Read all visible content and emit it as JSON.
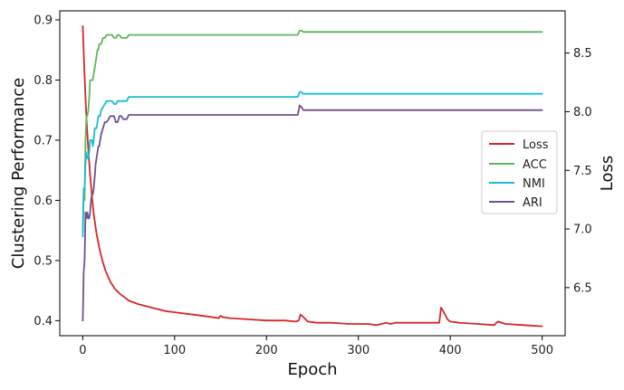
{
  "chart_data": {
    "type": "line",
    "xlabel": "Epoch",
    "ylabel_left": "Clustering Performance",
    "ylabel_right": "Loss",
    "x_ticks": [
      0,
      100,
      200,
      300,
      400,
      500
    ],
    "x_tick_labels": [
      "0",
      "100",
      "200",
      "300",
      "400",
      "500"
    ],
    "y_left_ticks": [
      0.4,
      0.5,
      0.6,
      0.7,
      0.8,
      0.9
    ],
    "y_left_tick_labels": [
      "0.4",
      "0.5",
      "0.6",
      "0.7",
      "0.8",
      "0.9"
    ],
    "y_right_ticks": [
      6.5,
      7.0,
      7.5,
      8.0,
      8.5
    ],
    "y_right_tick_labels": [
      "6.5",
      "7.0",
      "7.5",
      "8.0",
      "8.5"
    ],
    "xlim": [
      -25,
      525
    ],
    "ylim_left": [
      0.375,
      0.915
    ],
    "ylim_right": [
      6.09,
      8.86
    ],
    "grid": false,
    "legend_position": "center-right",
    "series": [
      {
        "name": "Loss",
        "axis": "right",
        "color": "#d62728",
        "x": [
          0,
          2,
          4,
          6,
          8,
          10,
          12,
          15,
          18,
          21,
          25,
          30,
          35,
          40,
          45,
          50,
          60,
          70,
          80,
          90,
          100,
          120,
          140,
          148,
          150,
          152,
          160,
          180,
          200,
          220,
          232,
          235,
          237,
          240,
          245,
          255,
          270,
          290,
          310,
          320,
          330,
          335,
          340,
          360,
          380,
          388,
          390,
          393,
          397,
          400,
          410,
          430,
          448,
          450,
          452,
          460,
          480,
          500
        ],
        "values": [
          8.73,
          8.3,
          7.95,
          7.68,
          7.46,
          7.28,
          7.13,
          6.96,
          6.84,
          6.74,
          6.64,
          6.55,
          6.49,
          6.45,
          6.42,
          6.39,
          6.36,
          6.34,
          6.32,
          6.3,
          6.29,
          6.27,
          6.25,
          6.24,
          6.26,
          6.25,
          6.24,
          6.23,
          6.22,
          6.22,
          6.21,
          6.22,
          6.27,
          6.25,
          6.21,
          6.2,
          6.2,
          6.19,
          6.19,
          6.18,
          6.2,
          6.19,
          6.2,
          6.2,
          6.2,
          6.2,
          6.33,
          6.29,
          6.23,
          6.21,
          6.2,
          6.19,
          6.18,
          6.2,
          6.21,
          6.19,
          6.18,
          6.17
        ]
      },
      {
        "name": "ACC",
        "axis": "left",
        "color": "#5cb85c",
        "x": [
          0,
          1,
          2,
          3,
          4,
          5,
          6,
          7,
          8,
          9,
          10,
          11,
          12,
          13,
          14,
          15,
          16,
          17,
          18,
          19,
          20,
          22,
          24,
          26,
          28,
          30,
          32,
          34,
          36,
          38,
          40,
          42,
          44,
          46,
          48,
          50,
          52,
          60,
          100,
          150,
          200,
          230,
          234,
          236,
          238,
          240,
          300,
          400,
          500
        ],
        "values": [
          0.55,
          0.62,
          0.6,
          0.7,
          0.74,
          0.74,
          0.75,
          0.77,
          0.8,
          0.8,
          0.8,
          0.8,
          0.81,
          0.82,
          0.83,
          0.84,
          0.85,
          0.85,
          0.86,
          0.86,
          0.86,
          0.87,
          0.87,
          0.875,
          0.875,
          0.875,
          0.875,
          0.87,
          0.87,
          0.875,
          0.875,
          0.87,
          0.87,
          0.87,
          0.87,
          0.875,
          0.875,
          0.875,
          0.875,
          0.875,
          0.875,
          0.875,
          0.875,
          0.882,
          0.882,
          0.88,
          0.88,
          0.88,
          0.88
        ]
      },
      {
        "name": "NMI",
        "axis": "left",
        "color": "#17becf",
        "x": [
          0,
          1,
          2,
          3,
          4,
          5,
          6,
          7,
          8,
          9,
          10,
          11,
          12,
          13,
          14,
          15,
          16,
          17,
          18,
          19,
          20,
          22,
          24,
          26,
          28,
          30,
          32,
          34,
          36,
          38,
          40,
          42,
          44,
          46,
          48,
          50,
          52,
          60,
          100,
          150,
          200,
          230,
          234,
          236,
          238,
          240,
          300,
          400,
          500
        ],
        "values": [
          0.54,
          0.61,
          0.62,
          0.66,
          0.68,
          0.67,
          0.67,
          0.68,
          0.7,
          0.7,
          0.7,
          0.69,
          0.7,
          0.72,
          0.72,
          0.72,
          0.73,
          0.74,
          0.74,
          0.74,
          0.75,
          0.755,
          0.76,
          0.765,
          0.765,
          0.765,
          0.765,
          0.76,
          0.76,
          0.765,
          0.765,
          0.765,
          0.765,
          0.765,
          0.765,
          0.772,
          0.772,
          0.772,
          0.772,
          0.772,
          0.772,
          0.772,
          0.772,
          0.78,
          0.78,
          0.777,
          0.777,
          0.777,
          0.777
        ]
      },
      {
        "name": "ARI",
        "axis": "left",
        "color": "#6f5090",
        "x": [
          0,
          1,
          2,
          3,
          4,
          5,
          6,
          7,
          8,
          9,
          10,
          11,
          12,
          13,
          14,
          15,
          16,
          17,
          18,
          19,
          20,
          22,
          24,
          26,
          28,
          30,
          32,
          34,
          36,
          38,
          40,
          42,
          44,
          46,
          48,
          50,
          52,
          60,
          100,
          150,
          200,
          230,
          234,
          236,
          238,
          240,
          300,
          400,
          500
        ],
        "values": [
          0.4,
          0.48,
          0.5,
          0.58,
          0.57,
          0.58,
          0.57,
          0.57,
          0.58,
          0.6,
          0.61,
          0.61,
          0.62,
          0.64,
          0.66,
          0.67,
          0.68,
          0.69,
          0.69,
          0.7,
          0.71,
          0.72,
          0.73,
          0.73,
          0.735,
          0.74,
          0.74,
          0.74,
          0.73,
          0.73,
          0.74,
          0.74,
          0.735,
          0.735,
          0.735,
          0.742,
          0.742,
          0.742,
          0.742,
          0.742,
          0.742,
          0.742,
          0.742,
          0.758,
          0.755,
          0.75,
          0.75,
          0.75,
          0.75
        ]
      }
    ]
  }
}
